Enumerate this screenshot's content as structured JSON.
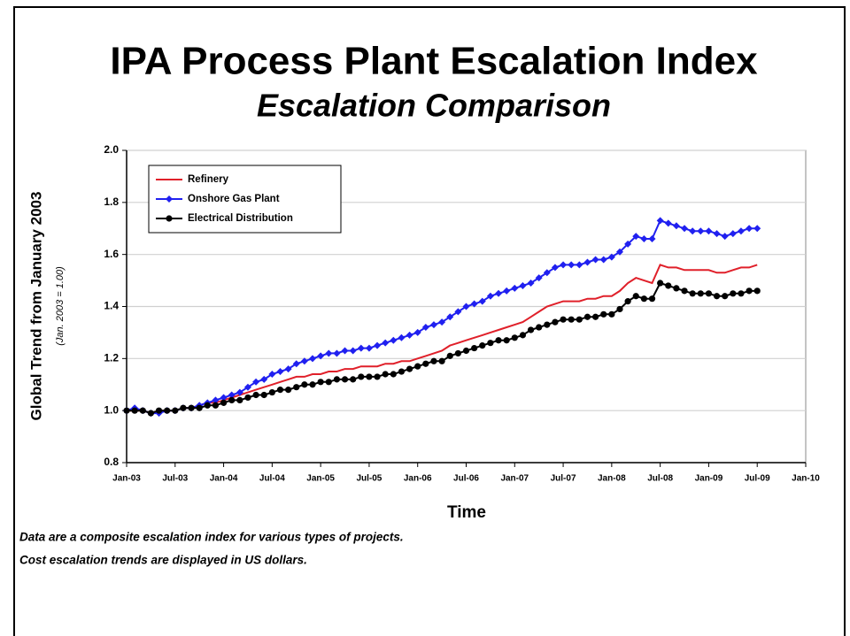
{
  "chart_data": {
    "type": "line",
    "title": "IPA Process Plant Escalation Index",
    "subtitle": "Escalation Comparison",
    "y_label": "Global Trend from January 2003",
    "y_sublabel": "(Jan. 2003 = 1.00)",
    "x_label": "Time",
    "notes": [
      "Data are a composite escalation index for various types of projects.",
      "Cost escalation trends are displayed in US dollars."
    ],
    "x": [
      "2003-01",
      "2003-02",
      "2003-03",
      "2003-04",
      "2003-05",
      "2003-06",
      "2003-07",
      "2003-08",
      "2003-09",
      "2003-10",
      "2003-11",
      "2003-12",
      "2004-01",
      "2004-02",
      "2004-03",
      "2004-04",
      "2004-05",
      "2004-06",
      "2004-07",
      "2004-08",
      "2004-09",
      "2004-10",
      "2004-11",
      "2004-12",
      "2005-01",
      "2005-02",
      "2005-03",
      "2005-04",
      "2005-05",
      "2005-06",
      "2005-07",
      "2005-08",
      "2005-09",
      "2005-10",
      "2005-11",
      "2005-12",
      "2006-01",
      "2006-02",
      "2006-03",
      "2006-04",
      "2006-05",
      "2006-06",
      "2006-07",
      "2006-08",
      "2006-09",
      "2006-10",
      "2006-11",
      "2006-12",
      "2007-01",
      "2007-02",
      "2007-03",
      "2007-04",
      "2007-05",
      "2007-06",
      "2007-07",
      "2007-08",
      "2007-09",
      "2007-10",
      "2007-11",
      "2007-12",
      "2008-01",
      "2008-02",
      "2008-03",
      "2008-04",
      "2008-05",
      "2008-06",
      "2008-07",
      "2008-08",
      "2008-09",
      "2008-10",
      "2008-11",
      "2008-12",
      "2009-01",
      "2009-02",
      "2009-03",
      "2009-04",
      "2009-05",
      "2009-06",
      "2009-07"
    ],
    "series": [
      {
        "name": "Refinery",
        "color": "#e0202a",
        "marker": "none",
        "values": [
          1.0,
          1.0,
          1.0,
          0.99,
          1.0,
          1.0,
          1.0,
          1.01,
          1.01,
          1.02,
          1.03,
          1.03,
          1.04,
          1.05,
          1.06,
          1.07,
          1.08,
          1.09,
          1.1,
          1.11,
          1.12,
          1.13,
          1.13,
          1.14,
          1.14,
          1.15,
          1.15,
          1.16,
          1.16,
          1.17,
          1.17,
          1.17,
          1.18,
          1.18,
          1.19,
          1.19,
          1.2,
          1.21,
          1.22,
          1.23,
          1.25,
          1.26,
          1.27,
          1.28,
          1.29,
          1.3,
          1.31,
          1.32,
          1.33,
          1.34,
          1.36,
          1.38,
          1.4,
          1.41,
          1.42,
          1.42,
          1.42,
          1.43,
          1.43,
          1.44,
          1.44,
          1.46,
          1.49,
          1.51,
          1.5,
          1.49,
          1.56,
          1.55,
          1.55,
          1.54,
          1.54,
          1.54,
          1.54,
          1.53,
          1.53,
          1.54,
          1.55,
          1.55,
          1.56
        ]
      },
      {
        "name": "Onshore Gas Plant",
        "color": "#2020f0",
        "marker": "diamond",
        "values": [
          1.0,
          1.01,
          1.0,
          0.99,
          0.99,
          1.0,
          1.0,
          1.01,
          1.01,
          1.02,
          1.03,
          1.04,
          1.05,
          1.06,
          1.07,
          1.09,
          1.11,
          1.12,
          1.14,
          1.15,
          1.16,
          1.18,
          1.19,
          1.2,
          1.21,
          1.22,
          1.22,
          1.23,
          1.23,
          1.24,
          1.24,
          1.25,
          1.26,
          1.27,
          1.28,
          1.29,
          1.3,
          1.32,
          1.33,
          1.34,
          1.36,
          1.38,
          1.4,
          1.41,
          1.42,
          1.44,
          1.45,
          1.46,
          1.47,
          1.48,
          1.49,
          1.51,
          1.53,
          1.55,
          1.56,
          1.56,
          1.56,
          1.57,
          1.58,
          1.58,
          1.59,
          1.61,
          1.64,
          1.67,
          1.66,
          1.66,
          1.73,
          1.72,
          1.71,
          1.7,
          1.69,
          1.69,
          1.69,
          1.68,
          1.67,
          1.68,
          1.69,
          1.7,
          1.7
        ]
      },
      {
        "name": "Electrical Distribution",
        "color": "#000000",
        "marker": "circle",
        "values": [
          1.0,
          1.0,
          1.0,
          0.99,
          1.0,
          1.0,
          1.0,
          1.01,
          1.01,
          1.01,
          1.02,
          1.02,
          1.03,
          1.04,
          1.04,
          1.05,
          1.06,
          1.06,
          1.07,
          1.08,
          1.08,
          1.09,
          1.1,
          1.1,
          1.11,
          1.11,
          1.12,
          1.12,
          1.12,
          1.13,
          1.13,
          1.13,
          1.14,
          1.14,
          1.15,
          1.16,
          1.17,
          1.18,
          1.19,
          1.19,
          1.21,
          1.22,
          1.23,
          1.24,
          1.25,
          1.26,
          1.27,
          1.27,
          1.28,
          1.29,
          1.31,
          1.32,
          1.33,
          1.34,
          1.35,
          1.35,
          1.35,
          1.36,
          1.36,
          1.37,
          1.37,
          1.39,
          1.42,
          1.44,
          1.43,
          1.43,
          1.49,
          1.48,
          1.47,
          1.46,
          1.45,
          1.45,
          1.45,
          1.44,
          1.44,
          1.45,
          1.45,
          1.46,
          1.46
        ]
      }
    ],
    "xlim": [
      "2003-01",
      "2010-01"
    ],
    "xticks": [
      {
        "value": "2003-01",
        "label": "Jan-03"
      },
      {
        "value": "2003-07",
        "label": "Jul-03"
      },
      {
        "value": "2004-01",
        "label": "Jan-04"
      },
      {
        "value": "2004-07",
        "label": "Jul-04"
      },
      {
        "value": "2005-01",
        "label": "Jan-05"
      },
      {
        "value": "2005-07",
        "label": "Jul-05"
      },
      {
        "value": "2006-01",
        "label": "Jan-06"
      },
      {
        "value": "2006-07",
        "label": "Jul-06"
      },
      {
        "value": "2007-01",
        "label": "Jan-07"
      },
      {
        "value": "2007-07",
        "label": "Jul-07"
      },
      {
        "value": "2008-01",
        "label": "Jan-08"
      },
      {
        "value": "2008-07",
        "label": "Jul-08"
      },
      {
        "value": "2009-01",
        "label": "Jan-09"
      },
      {
        "value": "2009-07",
        "label": "Jul-09"
      },
      {
        "value": "2010-01",
        "label": "Jan-10"
      }
    ],
    "ylim": [
      0.8,
      2.0
    ],
    "yticks": [
      0.8,
      {
        "value": 1,
        "label": "1.0"
      },
      1.2,
      1.4,
      1.6,
      1.8,
      {
        "value": 2,
        "label": "2.0"
      }
    ],
    "grid": true,
    "legend": "upper left"
  }
}
